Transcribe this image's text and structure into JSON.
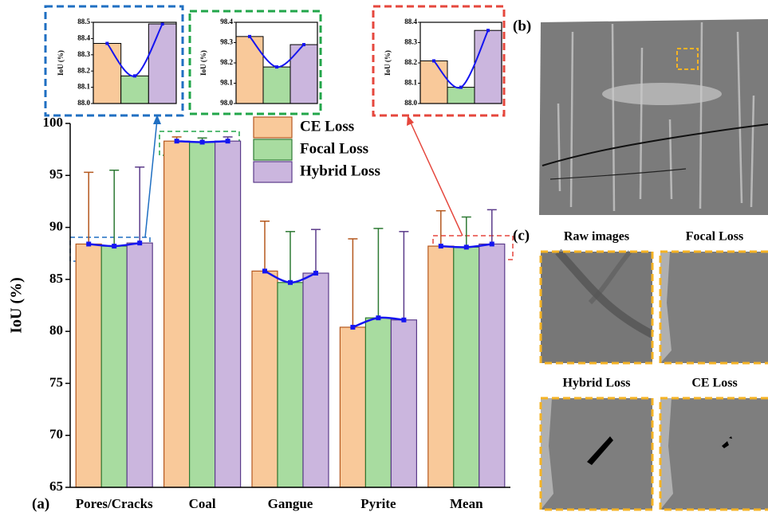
{
  "chart_data": [
    {
      "type": "bar",
      "ylabel": "IoU (%)",
      "categories": [
        "Pores/Cracks",
        "Coal",
        "Gangue",
        "Pyrite",
        "Mean"
      ],
      "series": [
        {
          "name": "CE Loss",
          "color": "#f9c99a",
          "edge": "#b5581e",
          "values": [
            88.4,
            98.3,
            85.8,
            80.4,
            88.2
          ],
          "errors": [
            6.9,
            0.4,
            4.8,
            8.5,
            3.4
          ]
        },
        {
          "name": "Focal Loss",
          "color": "#a8dca0",
          "edge": "#2e7a34",
          "values": [
            88.2,
            98.2,
            84.7,
            81.3,
            88.1
          ],
          "errors": [
            7.3,
            0.4,
            4.9,
            8.6,
            2.9
          ]
        },
        {
          "name": "Hybrid Loss",
          "color": "#cbb6de",
          "edge": "#5b3b8a",
          "values": [
            88.5,
            98.3,
            85.6,
            81.1,
            88.4
          ],
          "errors": [
            7.3,
            0.4,
            4.2,
            8.5,
            3.3
          ]
        }
      ],
      "line_color": "#1515f0",
      "ylim": [
        65,
        100
      ],
      "yticks": [
        65,
        70,
        75,
        80,
        85,
        90,
        95,
        100
      ]
    },
    {
      "type": "bar",
      "ylabel": "IoU (%)",
      "values": [
        88.37,
        88.17,
        88.49
      ],
      "colors": [
        "#f9c99a",
        "#a8dca0",
        "#cbb6de"
      ],
      "line_color": "#1515f0",
      "ylim": [
        88.0,
        88.5
      ],
      "yticks": [
        {
          "value": 88.0,
          "label": "88.0"
        },
        88.1,
        88.2,
        88.3,
        88.4,
        88.5
      ]
    },
    {
      "type": "bar",
      "ylabel": "IoU (%)",
      "values": [
        98.33,
        98.18,
        98.29
      ],
      "colors": [
        "#f9c99a",
        "#a8dca0",
        "#cbb6de"
      ],
      "line_color": "#1515f0",
      "ylim": [
        98.0,
        98.4
      ],
      "yticks": [
        {
          "value": 98.0,
          "label": "98.0"
        },
        98.1,
        98.2,
        98.3,
        98.4
      ]
    },
    {
      "type": "bar",
      "ylabel": "IoU (%)",
      "values": [
        88.21,
        88.08,
        88.36
      ],
      "colors": [
        "#f9c99a",
        "#a8dca0",
        "#cbb6de"
      ],
      "line_color": "#1515f0",
      "ylim": [
        88.0,
        88.4
      ],
      "yticks": [
        {
          "value": 88.0,
          "label": "88.0"
        },
        88.1,
        88.2,
        88.3,
        88.4
      ]
    }
  ],
  "panels": {
    "a": "(a)",
    "b": "(b)",
    "c": "(c)",
    "images": [
      "Raw images",
      "Focal Loss",
      "Hybrid Loss",
      "CE Loss"
    ]
  }
}
